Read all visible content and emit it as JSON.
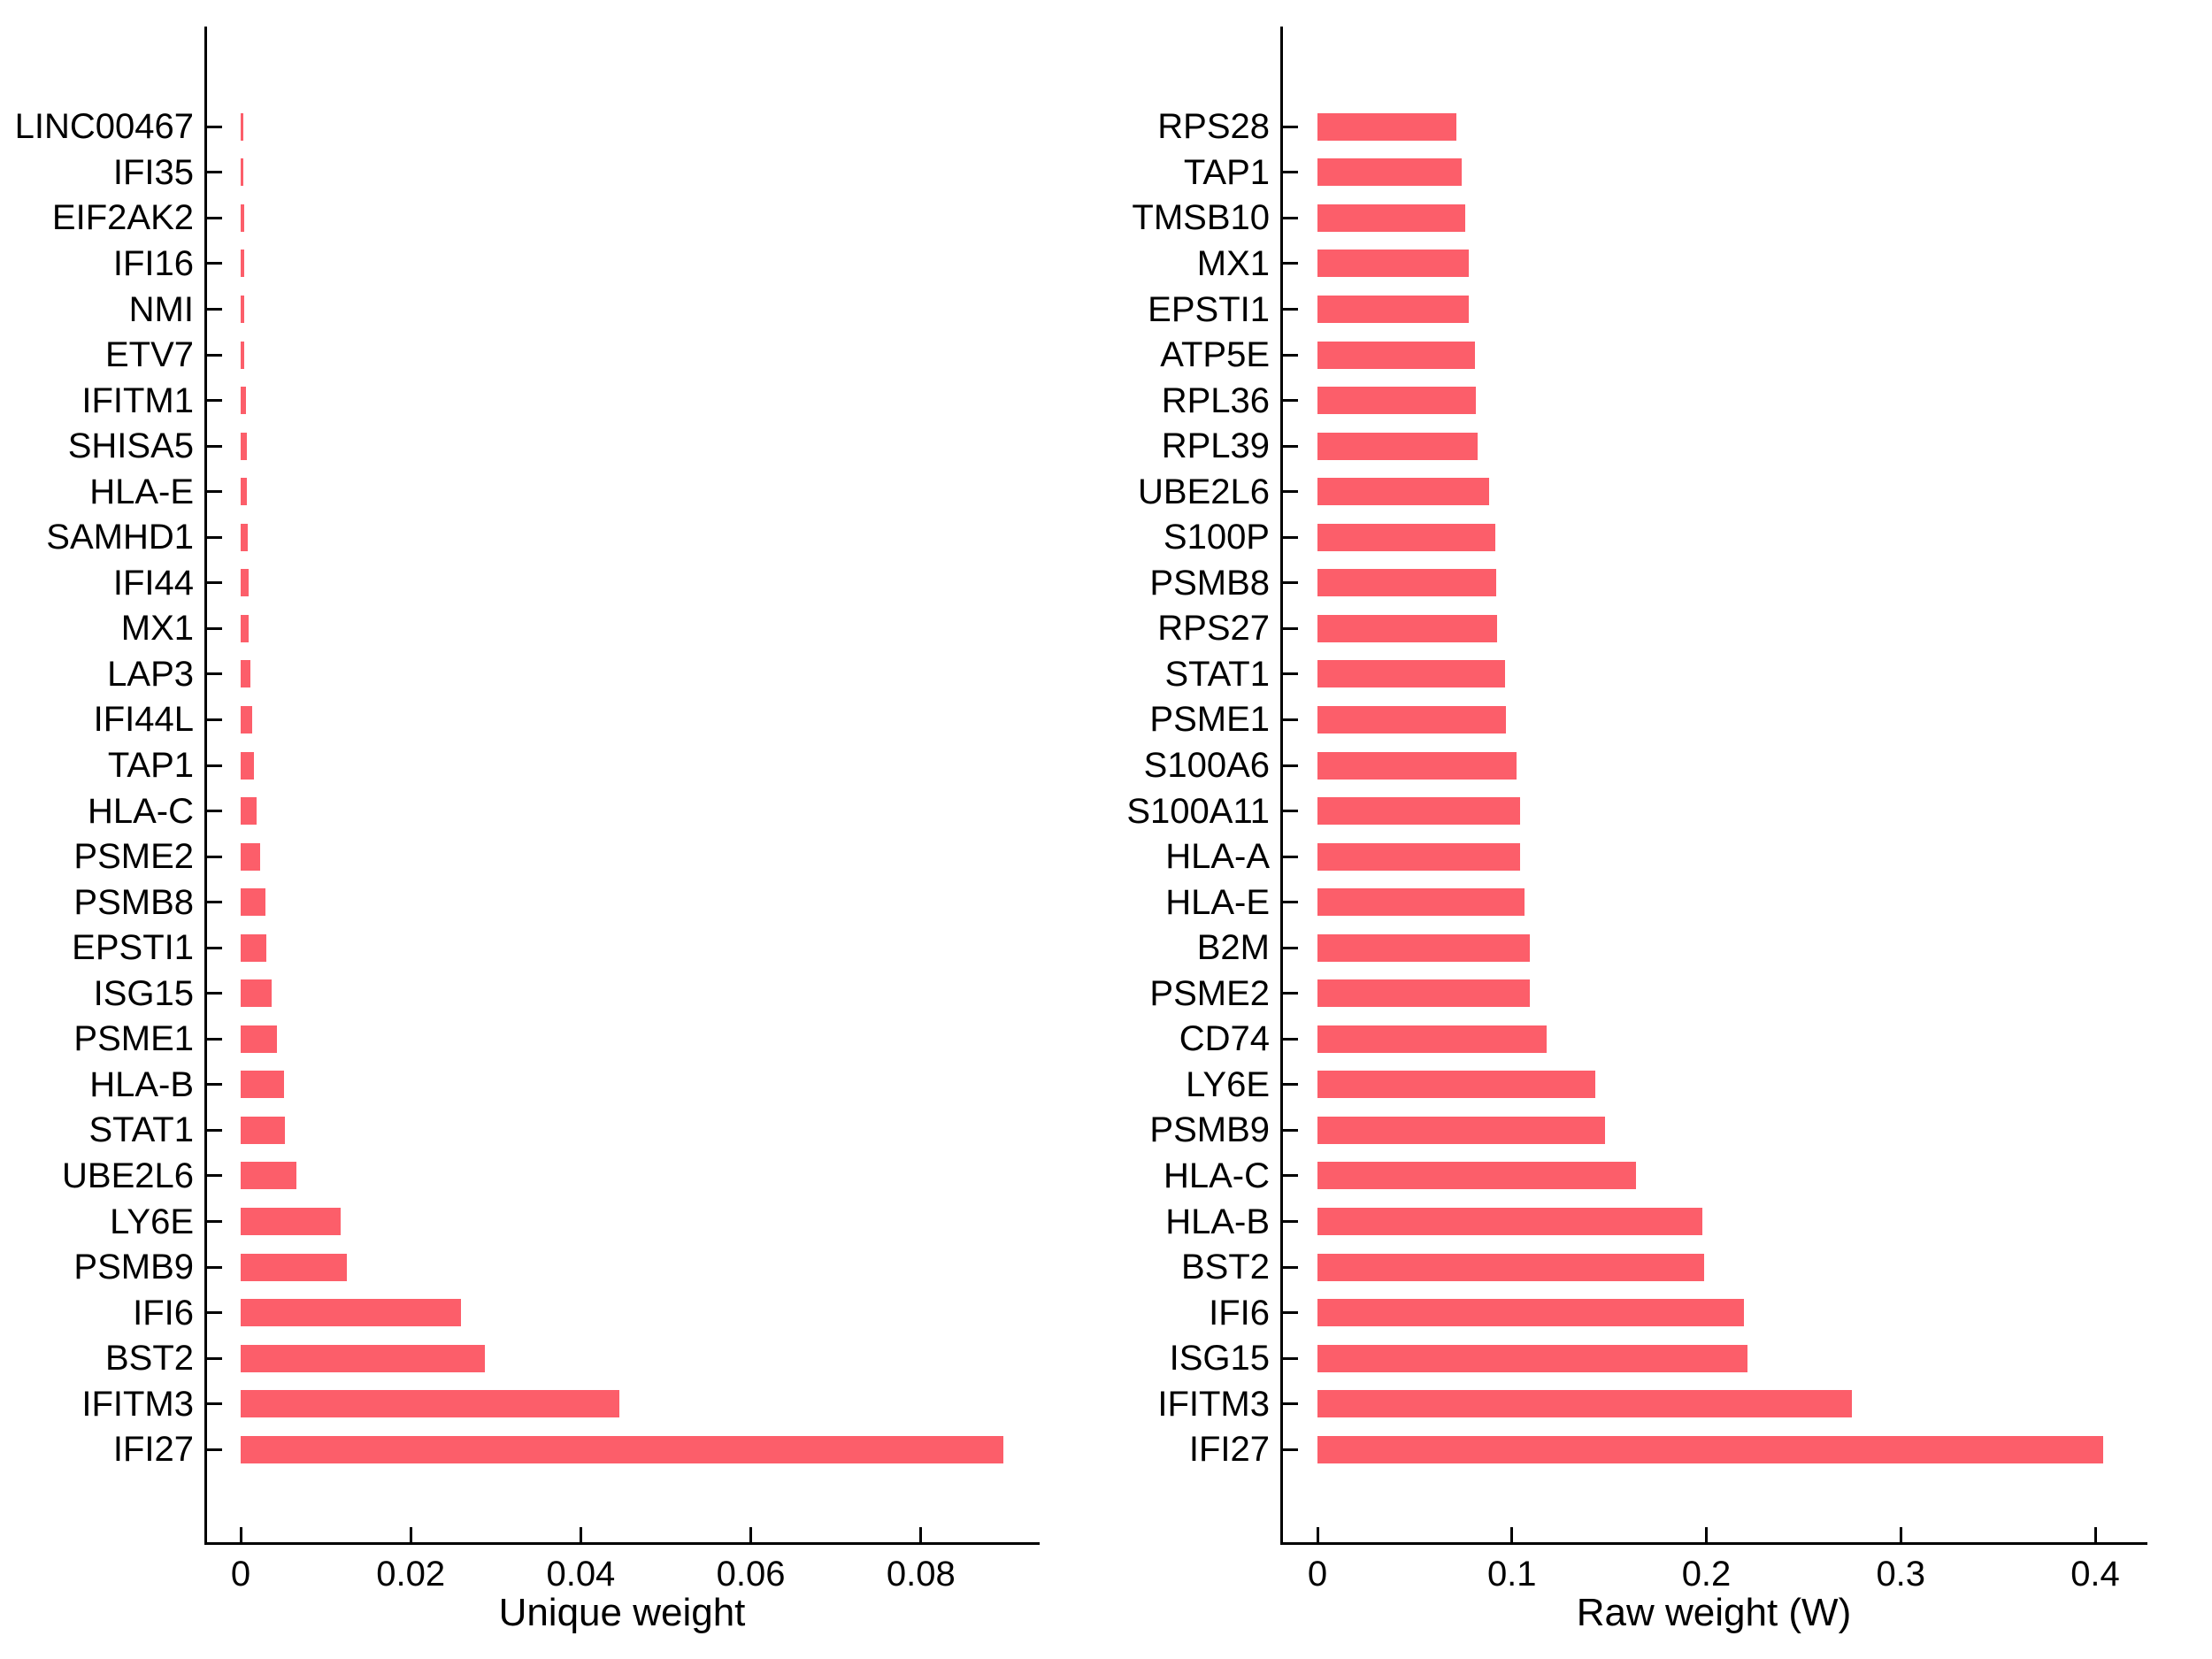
{
  "page": {
    "background": "#ffffff",
    "text_color": "#000000"
  },
  "chart_data": [
    {
      "type": "bar",
      "orientation": "horizontal",
      "title": "",
      "xlabel": "Unique weight",
      "ylabel": "",
      "bar_color": "#FC5E6A",
      "axis_color": "#000000",
      "grid": false,
      "legend": false,
      "xlim": [
        -0.00427,
        0.0945
      ],
      "xticks": [
        {
          "value": 0,
          "label": "0"
        },
        {
          "value": 0.02,
          "label": "0.02"
        },
        {
          "value": 0.04,
          "label": "0.04"
        },
        {
          "value": 0.06,
          "label": "0.06"
        },
        {
          "value": 0.08,
          "label": "0.08"
        }
      ],
      "series": [
        {
          "gene": "LINC00467",
          "value": 0.00033
        },
        {
          "gene": "IFI35",
          "value": 0.00034
        },
        {
          "gene": "EIF2AK2",
          "value": 0.00038
        },
        {
          "gene": "IFI16",
          "value": 0.0004
        },
        {
          "gene": "NMI",
          "value": 0.00041
        },
        {
          "gene": "ETV7",
          "value": 0.00043
        },
        {
          "gene": "IFITM1",
          "value": 0.00062
        },
        {
          "gene": "SHISA5",
          "value": 0.00072
        },
        {
          "gene": "HLA-E",
          "value": 0.00076
        },
        {
          "gene": "SAMHD1",
          "value": 0.0008
        },
        {
          "gene": "IFI44",
          "value": 0.0009
        },
        {
          "gene": "MX1",
          "value": 0.00096
        },
        {
          "gene": "LAP3",
          "value": 0.0011
        },
        {
          "gene": "IFI44L",
          "value": 0.00135
        },
        {
          "gene": "TAP1",
          "value": 0.00152
        },
        {
          "gene": "HLA-C",
          "value": 0.0019
        },
        {
          "gene": "PSME2",
          "value": 0.0023
        },
        {
          "gene": "PSMB8",
          "value": 0.00295
        },
        {
          "gene": "EPSTI1",
          "value": 0.003
        },
        {
          "gene": "ISG15",
          "value": 0.00365
        },
        {
          "gene": "PSME1",
          "value": 0.00424
        },
        {
          "gene": "HLA-B",
          "value": 0.00512
        },
        {
          "gene": "STAT1",
          "value": 0.00517
        },
        {
          "gene": "UBE2L6",
          "value": 0.00655
        },
        {
          "gene": "LY6E",
          "value": 0.0118
        },
        {
          "gene": "PSMB9",
          "value": 0.0125
        },
        {
          "gene": "IFI6",
          "value": 0.0259
        },
        {
          "gene": "BST2",
          "value": 0.0287
        },
        {
          "gene": "IFITM3",
          "value": 0.0445
        },
        {
          "gene": "IFI27",
          "value": 0.0897
        }
      ]
    },
    {
      "type": "bar",
      "orientation": "horizontal",
      "title": "",
      "xlabel": "Raw weight (W)",
      "ylabel": "",
      "bar_color": "#FC5E6A",
      "axis_color": "#000000",
      "grid": false,
      "legend": false,
      "xlim": [
        -0.0191,
        0.4267
      ],
      "xticks": [
        {
          "value": 0,
          "label": "0"
        },
        {
          "value": 0.1,
          "label": "0.1"
        },
        {
          "value": 0.2,
          "label": "0.2"
        },
        {
          "value": 0.3,
          "label": "0.3"
        },
        {
          "value": 0.4,
          "label": "0.4"
        }
      ],
      "series": [
        {
          "gene": "RPS28",
          "value": 0.0716
        },
        {
          "gene": "TAP1",
          "value": 0.074
        },
        {
          "gene": "TMSB10",
          "value": 0.0762
        },
        {
          "gene": "MX1",
          "value": 0.0777
        },
        {
          "gene": "EPSTI1",
          "value": 0.0778
        },
        {
          "gene": "ATP5E",
          "value": 0.081
        },
        {
          "gene": "RPL36",
          "value": 0.0815
        },
        {
          "gene": "RPL39",
          "value": 0.0822
        },
        {
          "gene": "UBE2L6",
          "value": 0.0885
        },
        {
          "gene": "S100P",
          "value": 0.0914
        },
        {
          "gene": "PSMB8",
          "value": 0.0918
        },
        {
          "gene": "RPS27",
          "value": 0.0922
        },
        {
          "gene": "STAT1",
          "value": 0.0967
        },
        {
          "gene": "PSME1",
          "value": 0.097
        },
        {
          "gene": "S100A6",
          "value": 0.1023
        },
        {
          "gene": "S100A11",
          "value": 0.104
        },
        {
          "gene": "HLA-A",
          "value": 0.1044
        },
        {
          "gene": "HLA-E",
          "value": 0.1064
        },
        {
          "gene": "B2M",
          "value": 0.109
        },
        {
          "gene": "PSME2",
          "value": 0.1093
        },
        {
          "gene": "CD74",
          "value": 0.1178
        },
        {
          "gene": "LY6E",
          "value": 0.143
        },
        {
          "gene": "PSMB9",
          "value": 0.1479
        },
        {
          "gene": "HLA-C",
          "value": 0.164
        },
        {
          "gene": "HLA-B",
          "value": 0.198
        },
        {
          "gene": "BST2",
          "value": 0.199
        },
        {
          "gene": "IFI6",
          "value": 0.2195
        },
        {
          "gene": "ISG15",
          "value": 0.2212
        },
        {
          "gene": "IFITM3",
          "value": 0.275
        },
        {
          "gene": "IFI27",
          "value": 0.4043
        }
      ]
    }
  ]
}
